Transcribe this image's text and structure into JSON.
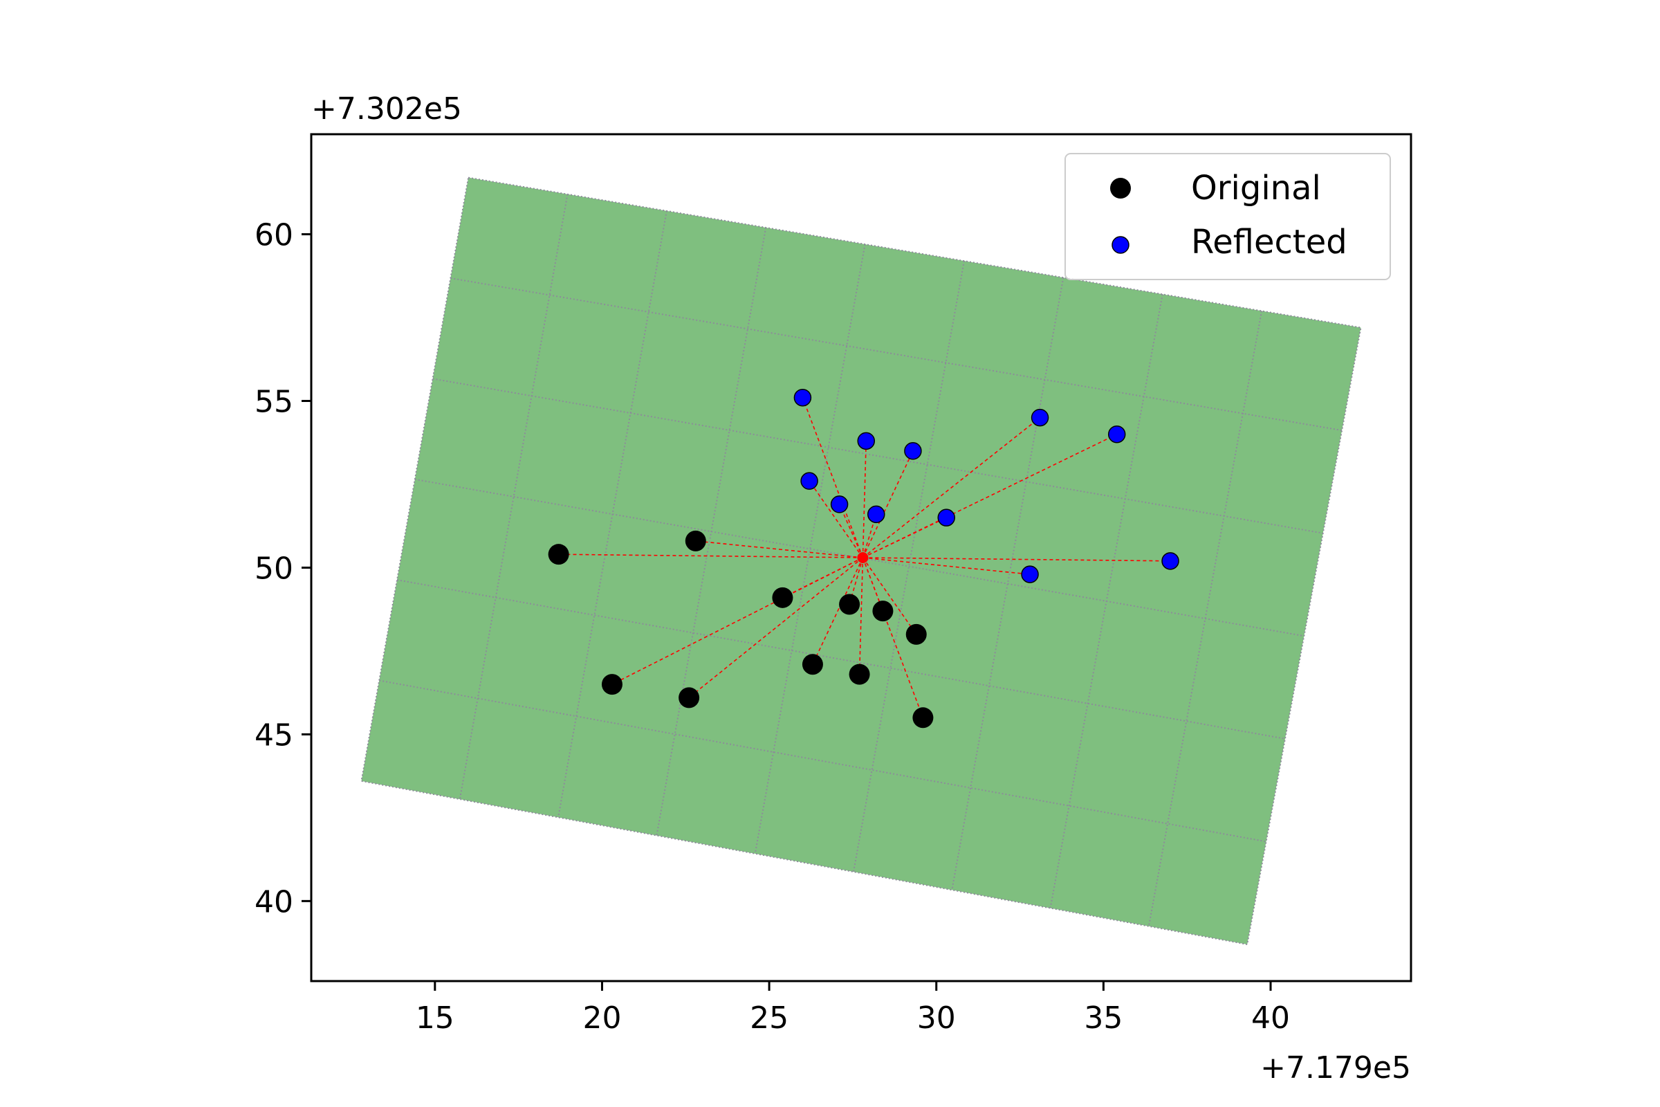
{
  "chart_data": {
    "type": "scatter",
    "x_offset_label": "+7.179e5",
    "y_offset_label": "+7.302e5",
    "xlim": [
      11.3,
      44.2
    ],
    "ylim": [
      37.6,
      63.0
    ],
    "x_ticks": [
      15,
      20,
      25,
      30,
      35,
      40
    ],
    "y_ticks": [
      40,
      45,
      50,
      55,
      60
    ],
    "grid": false,
    "legend_placement": "top-right",
    "grid_area": {
      "color": "#7fbf7f",
      "line_color": "#8c8c99",
      "corners": [
        [
          16.0,
          61.7
        ],
        [
          42.7,
          57.2
        ],
        [
          39.3,
          38.7
        ],
        [
          12.8,
          43.6
        ]
      ],
      "columns": 9,
      "rows": 6
    },
    "center": {
      "x": 27.8,
      "y": 50.3,
      "color": "#ff0000"
    },
    "connector_color": "#ff0000",
    "series": [
      {
        "name": "Original",
        "color": "#000000",
        "points": [
          {
            "x": 18.7,
            "y": 50.4
          },
          {
            "x": 22.8,
            "y": 50.8
          },
          {
            "x": 25.4,
            "y": 49.1
          },
          {
            "x": 27.4,
            "y": 48.9
          },
          {
            "x": 28.4,
            "y": 48.7
          },
          {
            "x": 29.4,
            "y": 48.0
          },
          {
            "x": 26.3,
            "y": 47.1
          },
          {
            "x": 27.7,
            "y": 46.8
          },
          {
            "x": 20.3,
            "y": 46.5
          },
          {
            "x": 22.6,
            "y": 46.1
          },
          {
            "x": 29.6,
            "y": 45.5
          }
        ]
      },
      {
        "name": "Reflected",
        "color": "#0000ff",
        "points": [
          {
            "x": 26.0,
            "y": 55.1
          },
          {
            "x": 33.1,
            "y": 54.5
          },
          {
            "x": 35.4,
            "y": 54.0
          },
          {
            "x": 27.9,
            "y": 53.8
          },
          {
            "x": 29.3,
            "y": 53.5
          },
          {
            "x": 26.2,
            "y": 52.6
          },
          {
            "x": 27.1,
            "y": 51.9
          },
          {
            "x": 28.2,
            "y": 51.6
          },
          {
            "x": 30.3,
            "y": 51.5
          },
          {
            "x": 37.0,
            "y": 50.2
          },
          {
            "x": 32.8,
            "y": 49.8
          }
        ]
      }
    ]
  }
}
